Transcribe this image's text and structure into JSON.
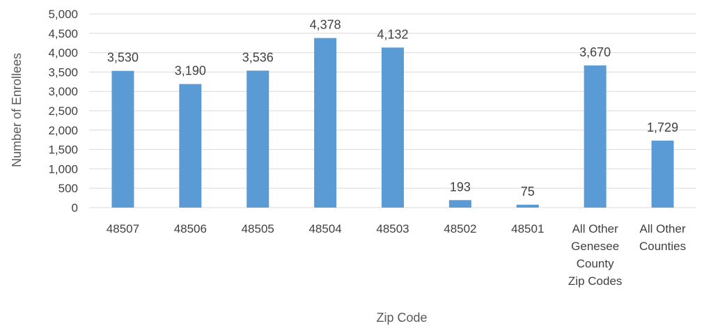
{
  "chart_data": {
    "type": "bar",
    "title": "",
    "xlabel": "Zip Code",
    "ylabel": "Number of Enrollees",
    "categories": [
      [
        "48507"
      ],
      [
        "48506"
      ],
      [
        "48505"
      ],
      [
        "48504"
      ],
      [
        "48503"
      ],
      [
        "48502"
      ],
      [
        "48501"
      ],
      [
        "All Other",
        "Genesee",
        "County",
        "Zip Codes"
      ],
      [
        "All Other",
        "Counties"
      ]
    ],
    "values": [
      3530,
      3190,
      3536,
      4378,
      4132,
      193,
      75,
      3670,
      1729
    ],
    "data_labels": [
      "3,530",
      "3,190",
      "3,536",
      "4,378",
      "4,132",
      "193",
      "75",
      "3,670",
      "1,729"
    ],
    "y_ticks": [
      "0",
      "500",
      "1,000",
      "1,500",
      "2,000",
      "2,500",
      "3,000",
      "3,500",
      "4,000",
      "4,500",
      "5,000"
    ],
    "ylim": [
      0,
      5000
    ],
    "y_step": 500,
    "grid": true,
    "legend": "none",
    "bar_color": "#5b9bd5"
  }
}
